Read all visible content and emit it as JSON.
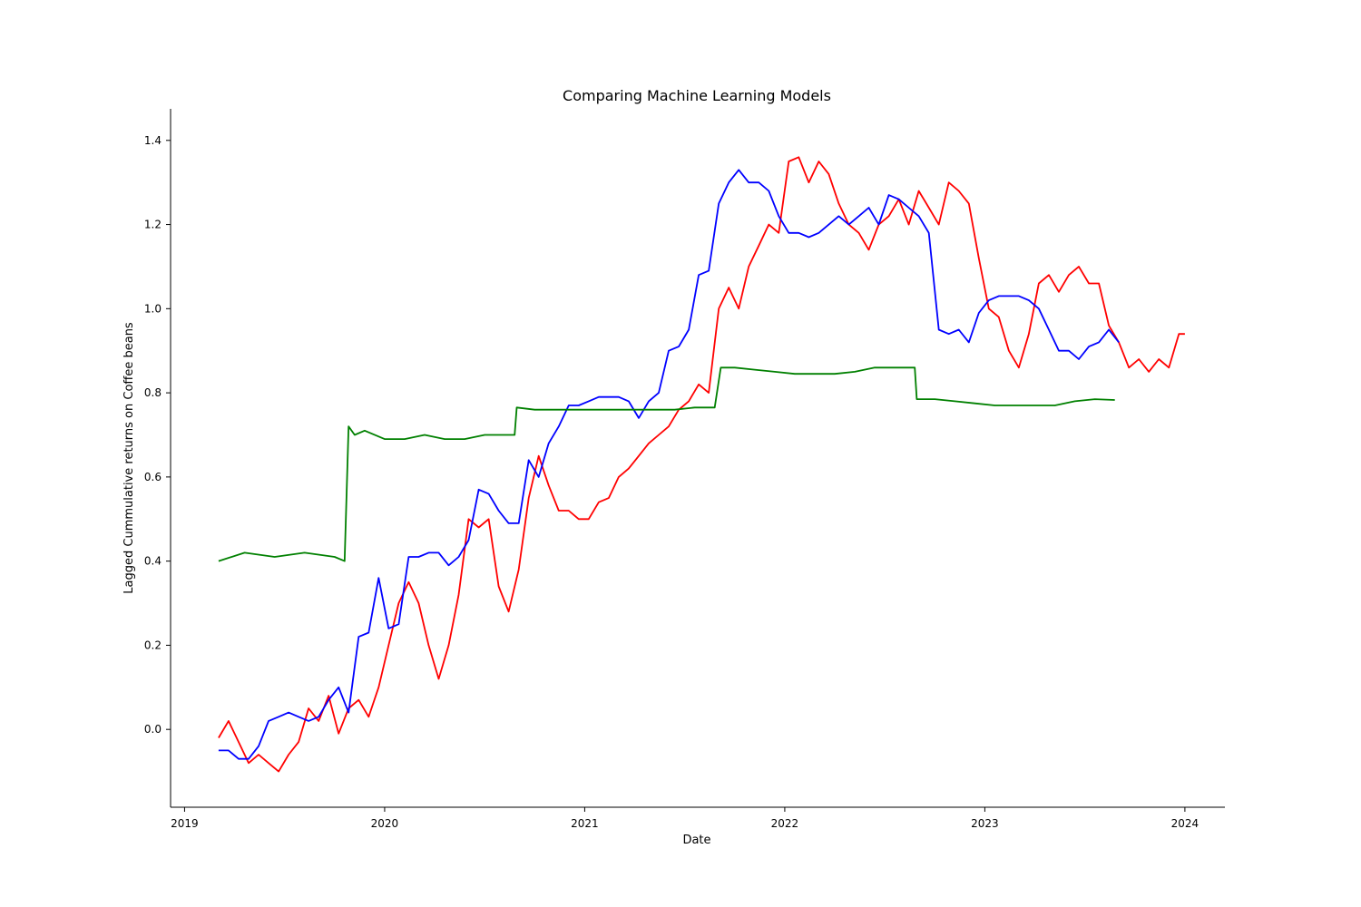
{
  "chart_data": {
    "type": "line",
    "title": "Comparing Machine Learning Models",
    "xlabel": "Date",
    "ylabel": "Lagged Cummulative returns on Coffee beans",
    "xlim": [
      2018.93,
      2024.2
    ],
    "ylim": [
      -0.185,
      1.475
    ],
    "x_ticks": [
      {
        "value": 2019,
        "label": "2019"
      },
      {
        "value": 2020,
        "label": "2020"
      },
      {
        "value": 2021,
        "label": "2021"
      },
      {
        "value": 2022,
        "label": "2022"
      },
      {
        "value": 2023,
        "label": "2023"
      },
      {
        "value": 2024,
        "label": "2024"
      }
    ],
    "y_ticks": [
      {
        "value": 0.0,
        "label": "0.0"
      },
      {
        "value": 0.2,
        "label": "0.2"
      },
      {
        "value": 0.4,
        "label": "0.4"
      },
      {
        "value": 0.6,
        "label": "0.6"
      },
      {
        "value": 0.8,
        "label": "0.8"
      },
      {
        "value": 1.0,
        "label": "1.0"
      },
      {
        "value": 1.2,
        "label": "1.2"
      },
      {
        "value": 1.4,
        "label": "1.4"
      }
    ],
    "grid": false,
    "legend": "none",
    "series": [
      {
        "color": "#ff0000",
        "x": [
          2019.17,
          2019.22,
          2019.27,
          2019.32,
          2019.37,
          2019.42,
          2019.47,
          2019.52,
          2019.57,
          2019.62,
          2019.67,
          2019.72,
          2019.77,
          2019.82,
          2019.87,
          2019.92,
          2019.97,
          2020.02,
          2020.07,
          2020.12,
          2020.17,
          2020.22,
          2020.27,
          2020.32,
          2020.37,
          2020.42,
          2020.47,
          2020.52,
          2020.57,
          2020.62,
          2020.67,
          2020.72,
          2020.77,
          2020.82,
          2020.87,
          2020.92,
          2020.97,
          2021.02,
          2021.07,
          2021.12,
          2021.17,
          2021.22,
          2021.27,
          2021.32,
          2021.37,
          2021.42,
          2021.47,
          2021.52,
          2021.57,
          2021.62,
          2021.67,
          2021.72,
          2021.77,
          2021.82,
          2021.87,
          2021.92,
          2021.97,
          2022.02,
          2022.07,
          2022.12,
          2022.17,
          2022.22,
          2022.27,
          2022.32,
          2022.37,
          2022.42,
          2022.47,
          2022.52,
          2022.57,
          2022.62,
          2022.67,
          2022.72,
          2022.77,
          2022.82,
          2022.87,
          2022.92,
          2022.97,
          2023.02,
          2023.07,
          2023.12,
          2023.17,
          2023.22,
          2023.27,
          2023.32,
          2023.37,
          2023.42,
          2023.47,
          2023.52,
          2023.57,
          2023.62,
          2023.67,
          2023.72,
          2023.77,
          2023.82,
          2023.87,
          2023.92,
          2023.97,
          2024.0
        ],
        "y": [
          -0.02,
          0.02,
          -0.03,
          -0.08,
          -0.06,
          -0.08,
          -0.1,
          -0.06,
          -0.03,
          0.05,
          0.02,
          0.08,
          -0.01,
          0.05,
          0.07,
          0.03,
          0.1,
          0.2,
          0.3,
          0.35,
          0.3,
          0.2,
          0.12,
          0.2,
          0.32,
          0.5,
          0.48,
          0.5,
          0.34,
          0.28,
          0.38,
          0.55,
          0.65,
          0.58,
          0.52,
          0.52,
          0.5,
          0.5,
          0.54,
          0.55,
          0.6,
          0.62,
          0.65,
          0.68,
          0.7,
          0.72,
          0.76,
          0.78,
          0.82,
          0.8,
          1.0,
          1.05,
          1.0,
          1.1,
          1.15,
          1.2,
          1.18,
          1.35,
          1.36,
          1.3,
          1.35,
          1.32,
          1.25,
          1.2,
          1.18,
          1.14,
          1.2,
          1.22,
          1.26,
          1.2,
          1.28,
          1.24,
          1.2,
          1.3,
          1.28,
          1.25,
          1.12,
          1.0,
          0.98,
          0.9,
          0.86,
          0.94,
          1.06,
          1.08,
          1.04,
          1.08,
          1.1,
          1.06,
          1.06,
          0.96,
          0.92,
          0.86,
          0.88,
          0.85,
          0.88,
          0.86,
          0.94,
          0.94
        ]
      },
      {
        "color": "#0000ff",
        "x": [
          2019.17,
          2019.22,
          2019.27,
          2019.32,
          2019.37,
          2019.42,
          2019.47,
          2019.52,
          2019.57,
          2019.62,
          2019.67,
          2019.72,
          2019.77,
          2019.82,
          2019.87,
          2019.92,
          2019.97,
          2020.02,
          2020.07,
          2020.12,
          2020.17,
          2020.22,
          2020.27,
          2020.32,
          2020.37,
          2020.42,
          2020.47,
          2020.52,
          2020.57,
          2020.62,
          2020.67,
          2020.72,
          2020.77,
          2020.82,
          2020.87,
          2020.92,
          2020.97,
          2021.02,
          2021.07,
          2021.12,
          2021.17,
          2021.22,
          2021.27,
          2021.32,
          2021.37,
          2021.42,
          2021.47,
          2021.52,
          2021.57,
          2021.62,
          2021.67,
          2021.72,
          2021.77,
          2021.82,
          2021.87,
          2021.92,
          2021.97,
          2022.02,
          2022.07,
          2022.12,
          2022.17,
          2022.22,
          2022.27,
          2022.32,
          2022.37,
          2022.42,
          2022.47,
          2022.52,
          2022.57,
          2022.62,
          2022.67,
          2022.72,
          2022.77,
          2022.82,
          2022.87,
          2022.92,
          2022.97,
          2023.02,
          2023.07,
          2023.12,
          2023.17,
          2023.22,
          2023.27,
          2023.32,
          2023.37,
          2023.42,
          2023.47,
          2023.52,
          2023.57,
          2023.62,
          2023.67
        ],
        "y": [
          -0.05,
          -0.05,
          -0.07,
          -0.07,
          -0.04,
          0.02,
          0.03,
          0.04,
          0.03,
          0.02,
          0.03,
          0.07,
          0.1,
          0.04,
          0.22,
          0.23,
          0.36,
          0.24,
          0.25,
          0.41,
          0.41,
          0.42,
          0.42,
          0.39,
          0.41,
          0.45,
          0.57,
          0.56,
          0.52,
          0.49,
          0.49,
          0.64,
          0.6,
          0.68,
          0.72,
          0.77,
          0.77,
          0.78,
          0.79,
          0.79,
          0.79,
          0.78,
          0.74,
          0.78,
          0.8,
          0.9,
          0.91,
          0.95,
          1.08,
          1.09,
          1.25,
          1.3,
          1.33,
          1.3,
          1.3,
          1.28,
          1.22,
          1.18,
          1.18,
          1.17,
          1.18,
          1.2,
          1.22,
          1.2,
          1.22,
          1.24,
          1.2,
          1.27,
          1.26,
          1.24,
          1.22,
          1.18,
          0.95,
          0.94,
          0.95,
          0.92,
          0.99,
          1.02,
          1.03,
          1.03,
          1.03,
          1.02,
          1.0,
          0.95,
          0.9,
          0.9,
          0.88,
          0.91,
          0.92,
          0.95,
          0.92
        ]
      },
      {
        "color": "#008000",
        "x": [
          2019.17,
          2019.3,
          2019.45,
          2019.6,
          2019.75,
          2019.8,
          2019.82,
          2019.85,
          2019.9,
          2020.0,
          2020.1,
          2020.2,
          2020.3,
          2020.4,
          2020.5,
          2020.6,
          2020.65,
          2020.66,
          2020.75,
          2020.85,
          2020.95,
          2021.05,
          2021.15,
          2021.25,
          2021.35,
          2021.45,
          2021.55,
          2021.65,
          2021.68,
          2021.75,
          2021.85,
          2021.95,
          2022.05,
          2022.15,
          2022.25,
          2022.35,
          2022.45,
          2022.55,
          2022.65,
          2022.66,
          2022.75,
          2022.85,
          2022.95,
          2023.05,
          2023.15,
          2023.25,
          2023.35,
          2023.45,
          2023.55,
          2023.65
        ],
        "y": [
          0.4,
          0.42,
          0.41,
          0.42,
          0.41,
          0.4,
          0.72,
          0.7,
          0.71,
          0.69,
          0.69,
          0.7,
          0.69,
          0.69,
          0.7,
          0.7,
          0.7,
          0.765,
          0.76,
          0.76,
          0.76,
          0.76,
          0.76,
          0.76,
          0.76,
          0.76,
          0.765,
          0.765,
          0.86,
          0.86,
          0.855,
          0.85,
          0.845,
          0.845,
          0.845,
          0.85,
          0.86,
          0.86,
          0.86,
          0.785,
          0.785,
          0.78,
          0.775,
          0.77,
          0.77,
          0.77,
          0.77,
          0.78,
          0.785,
          0.783
        ]
      }
    ]
  }
}
